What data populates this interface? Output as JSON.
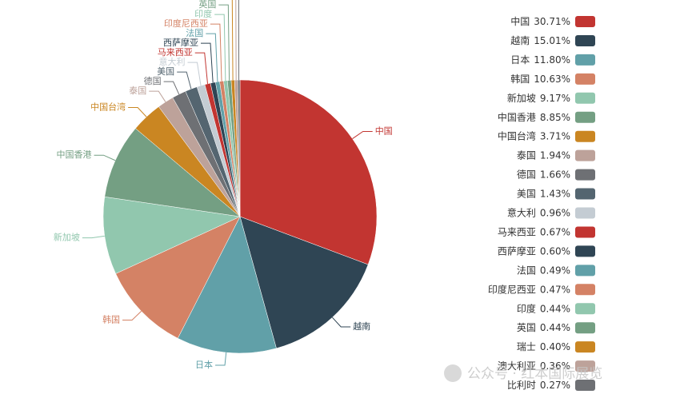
{
  "chart_data": {
    "type": "pie",
    "categories": [
      "中国",
      "越南",
      "日本",
      "韩国",
      "新加坡",
      "中国香港",
      "中国台湾",
      "泰国",
      "德国",
      "美国",
      "意大利",
      "马来西亚",
      "西萨摩亚",
      "法国",
      "印度尼西亚",
      "印度",
      "英国",
      "瑞士",
      "澳大利亚",
      "比利时"
    ],
    "values": [
      30.71,
      15.01,
      11.8,
      10.63,
      9.17,
      8.85,
      3.71,
      1.94,
      1.66,
      1.43,
      0.96,
      0.67,
      0.6,
      0.49,
      0.47,
      0.44,
      0.44,
      0.4,
      0.36,
      0.27
    ],
    "value_labels": [
      "30.71%",
      "15.01%",
      "11.80%",
      "10.63%",
      "9.17%",
      "8.85%",
      "3.71%",
      "1.94%",
      "1.66%",
      "1.43%",
      "0.96%",
      "0.67%",
      "0.60%",
      "0.49%",
      "0.47%",
      "0.44%",
      "0.44%",
      "0.40%",
      "0.36%",
      "0.27%"
    ],
    "colors": [
      "#c23531",
      "#2f4554",
      "#61a0a8",
      "#d48265",
      "#91c7ae",
      "#749f83",
      "#ca8622",
      "#bda29a",
      "#6e7074",
      "#546570",
      "#c4ccd3",
      "#c23531",
      "#2f4554",
      "#61a0a8",
      "#d48265",
      "#91c7ae",
      "#749f83",
      "#ca8622",
      "#bda29a",
      "#6e7074"
    ],
    "legend": "right",
    "watermark": "公众号 · 红本国际展览"
  }
}
